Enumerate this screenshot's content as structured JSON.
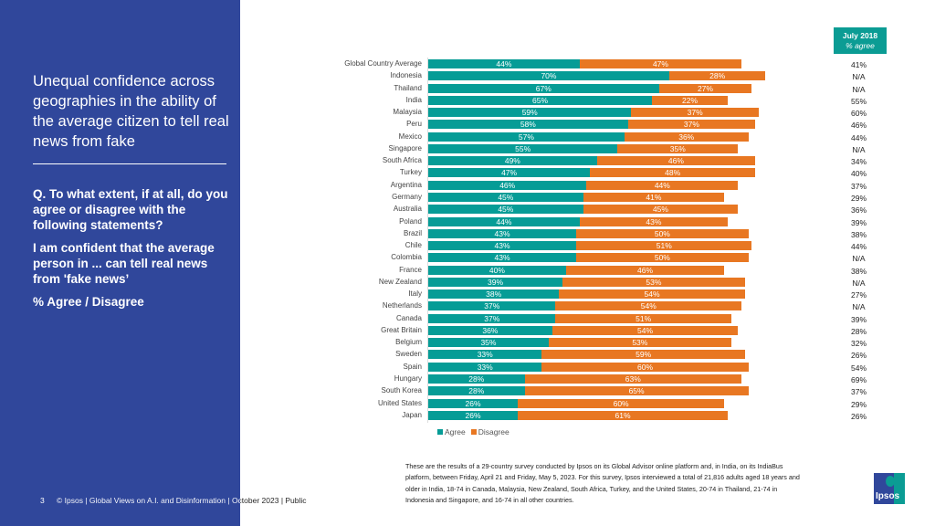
{
  "sidebar": {
    "title": "Unequal confidence across geographies in the ability of the average citizen to tell real news from fake",
    "question": "Q. To what extent, if at all, do you agree or disagree with the following statements?",
    "statement": "I am confident that the average person in ... can tell real news from 'fake news’",
    "measure": "% Agree / Disagree"
  },
  "footer": {
    "page": "3",
    "text": "© Ipsos | Global Views on A.I. and Disinformation | October 2023 | Public"
  },
  "comparison_header": {
    "period": "July 2018",
    "label": "% agree"
  },
  "colors": {
    "agree": "#069c96",
    "disagree": "#e87722",
    "panel": "#30479b"
  },
  "chart_data": {
    "type": "bar",
    "orientation": "horizontal-stacked",
    "categories": [
      "Global Country Average",
      "Indonesia",
      "Thailand",
      "India",
      "Malaysia",
      "Peru",
      "Mexico",
      "Singapore",
      "South Africa",
      "Turkey",
      "Argentina",
      "Germany",
      "Australia",
      "Poland",
      "Brazil",
      "Chile",
      "Colombia",
      "France",
      "New Zealand",
      "Italy",
      "Netherlands",
      "Canada",
      "Great Britain",
      "Belgium",
      "Sweden",
      "Spain",
      "Hungary",
      "South Korea",
      "United States",
      "Japan"
    ],
    "series": [
      {
        "name": "Agree",
        "values": [
          44,
          70,
          67,
          65,
          59,
          58,
          57,
          55,
          49,
          47,
          46,
          45,
          45,
          44,
          43,
          43,
          43,
          40,
          39,
          38,
          37,
          37,
          36,
          35,
          33,
          33,
          28,
          28,
          26,
          26
        ]
      },
      {
        "name": "Disagree",
        "values": [
          47,
          28,
          27,
          22,
          37,
          37,
          36,
          35,
          46,
          48,
          44,
          41,
          45,
          43,
          50,
          51,
          50,
          46,
          53,
          54,
          54,
          51,
          54,
          53,
          59,
          60,
          63,
          65,
          60,
          61
        ]
      }
    ],
    "july_2018_agree": [
      "41%",
      "N/A",
      "N/A",
      "55%",
      "60%",
      "46%",
      "44%",
      "N/A",
      "34%",
      "40%",
      "37%",
      "29%",
      "36%",
      "39%",
      "38%",
      "44%",
      "N/A",
      "38%",
      "N/A",
      "27%",
      "N/A",
      "39%",
      "28%",
      "32%",
      "26%",
      "54%",
      "69%",
      "37%",
      "29%",
      "26%"
    ],
    "legend": "bottom-left"
  },
  "note": "These are the results of a 29-country survey conducted by Ipsos on its Global Advisor online platform and, in India, on its IndiaBus platform, between Friday, April 21 and Friday, May 5, 2023. For this survey, Ipsos interviewed a total of 21,816 adults aged 18 years and older in India, 18-74 in Canada, Malaysia, New Zealand, South Africa, Turkey, and the United States, 20-74 in Thailand, 21-74 in Indonesia and Singapore, and 16-74 in all other countries.",
  "logo": "Ipsos"
}
